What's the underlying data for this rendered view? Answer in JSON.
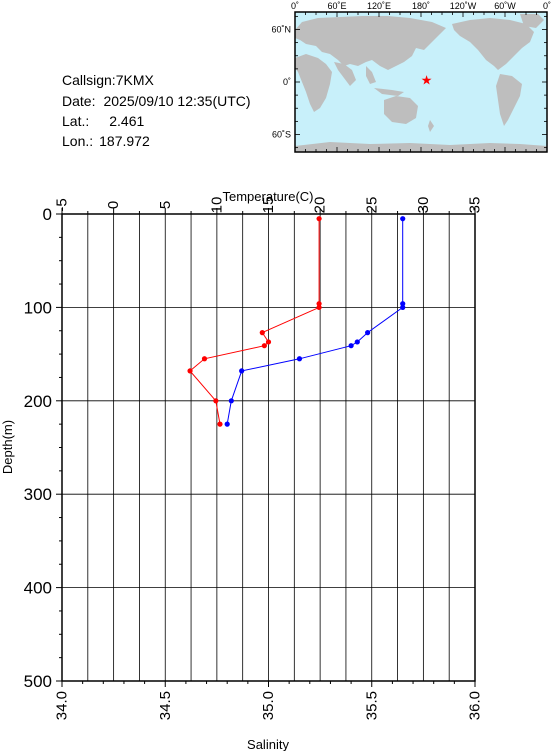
{
  "info": {
    "callsign_label": "Callsign:",
    "callsign": "7KMX",
    "date_label": "Date:",
    "date": "2025/09/10 12:35(UTC)",
    "lat_label": "Lat.:",
    "lat": "2.461",
    "lon_label": "Lon.:",
    "lon": "187.972"
  },
  "map": {
    "top_ticks": [
      "0˚",
      "60˚E",
      "120˚E",
      "180˚",
      "120˚W",
      "60˚W",
      "0˚"
    ],
    "lat_ticks": [
      "60˚N",
      "0˚",
      "60˚S"
    ],
    "station_marker": {
      "lon": 187.972,
      "lat": 2.461,
      "color": "#ff0000"
    },
    "ocean_color": "#c8f0fa",
    "land_color": "#bebebe"
  },
  "chart_data": {
    "type": "line",
    "title": "",
    "top_axis_label": "Temperature(C)",
    "bottom_axis_label": "Salinity",
    "ylabel": "Depth(m)",
    "y_inverted": true,
    "ylim": [
      0,
      500
    ],
    "y_ticks": [
      0,
      100,
      200,
      300,
      400,
      500
    ],
    "temperature_axis": {
      "min": -5,
      "max": 35,
      "ticks": [
        -5,
        0,
        5,
        10,
        15,
        20,
        25,
        30,
        35
      ]
    },
    "salinity_axis": {
      "min": 34.0,
      "max": 36.0,
      "ticks": [
        "34.0",
        "34.5",
        "35.0",
        "35.5",
        "36.0"
      ]
    },
    "grid": true,
    "series": [
      {
        "quantity": "temperature",
        "color": "#ff0000",
        "points": [
          {
            "value": 19.9,
            "depth": 5
          },
          {
            "value": 19.9,
            "depth": 96
          },
          {
            "value": 19.9,
            "depth": 100
          },
          {
            "value": 14.4,
            "depth": 127
          },
          {
            "value": 15.0,
            "depth": 137
          },
          {
            "value": 14.6,
            "depth": 141
          },
          {
            "value": 8.8,
            "depth": 155
          },
          {
            "value": 7.4,
            "depth": 168
          },
          {
            "value": 9.9,
            "depth": 200
          },
          {
            "value": 10.3,
            "depth": 225
          }
        ]
      },
      {
        "quantity": "salinity",
        "color": "#0000ff",
        "points": [
          {
            "value": 35.65,
            "depth": 5
          },
          {
            "value": 35.65,
            "depth": 96
          },
          {
            "value": 35.65,
            "depth": 100
          },
          {
            "value": 35.48,
            "depth": 127
          },
          {
            "value": 35.43,
            "depth": 137
          },
          {
            "value": 35.4,
            "depth": 141
          },
          {
            "value": 35.15,
            "depth": 155
          },
          {
            "value": 34.87,
            "depth": 168
          },
          {
            "value": 34.82,
            "depth": 200
          },
          {
            "value": 34.8,
            "depth": 225
          }
        ]
      }
    ]
  }
}
